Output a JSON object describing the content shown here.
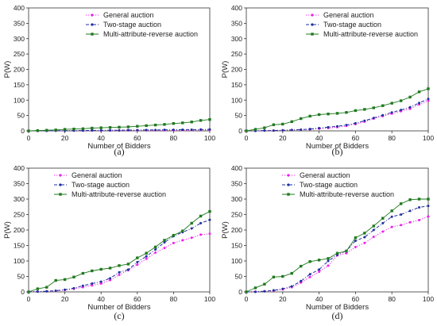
{
  "colors": {
    "general": "#ee22ee",
    "two_stage": "#1f2f9f",
    "multi": "#1f7a1f",
    "axis": "#333333"
  },
  "chart_data": [
    {
      "type": "line",
      "caption": "(a)",
      "xlabel": "Number of Bidders",
      "ylabel": "P(W)",
      "xlim": [
        0,
        100
      ],
      "ylim": [
        0,
        400
      ],
      "xticks": [
        "0",
        "20",
        "40",
        "60",
        "80",
        "100"
      ],
      "yticks": [
        "0",
        "50",
        "100",
        "150",
        "200",
        "250",
        "300",
        "350",
        "400"
      ],
      "grid": false,
      "legend": "top-center",
      "x": [
        0,
        5,
        10,
        15,
        20,
        25,
        30,
        35,
        40,
        45,
        50,
        55,
        60,
        65,
        70,
        75,
        80,
        85,
        90,
        95,
        100
      ],
      "series": [
        {
          "name": "General auction",
          "marker": "dot",
          "line": "dotted",
          "values": [
            0,
            0,
            0,
            0,
            0.5,
            0.5,
            0.5,
            1,
            1,
            1,
            1,
            1.5,
            1.5,
            1.5,
            2,
            2,
            2,
            2.5,
            2.5,
            3,
            3
          ]
        },
        {
          "name": "Two-stage auction",
          "marker": "dot",
          "line": "dashdot",
          "values": [
            0,
            0,
            0,
            0.5,
            0.5,
            1,
            1,
            1.5,
            1.5,
            2,
            2,
            2.5,
            2.5,
            3,
            3,
            3.5,
            3.5,
            4,
            4,
            4.5,
            5
          ]
        },
        {
          "name": "Multi-attribute-reverse auction",
          "marker": "square",
          "line": "solid",
          "values": [
            0,
            1,
            2,
            3,
            5,
            6,
            7,
            9,
            10,
            11,
            12,
            13,
            15,
            17,
            19,
            21,
            24,
            26,
            29,
            34,
            37
          ]
        }
      ]
    },
    {
      "type": "line",
      "caption": "(b)",
      "xlabel": "Number of Bidders",
      "ylabel": "P(W)",
      "xlim": [
        0,
        100
      ],
      "ylim": [
        0,
        400
      ],
      "xticks": [
        "0",
        "20",
        "40",
        "60",
        "80",
        "100"
      ],
      "yticks": [
        "0",
        "50",
        "100",
        "150",
        "200",
        "250",
        "300",
        "350",
        "400"
      ],
      "grid": false,
      "legend": "top-center",
      "x": [
        0,
        5,
        10,
        15,
        20,
        25,
        30,
        35,
        40,
        45,
        50,
        55,
        60,
        65,
        70,
        75,
        80,
        85,
        90,
        95,
        100
      ],
      "series": [
        {
          "name": "General auction",
          "marker": "dot",
          "line": "dotted",
          "values": [
            0,
            0,
            1,
            1,
            2,
            3,
            4,
            5,
            7,
            9,
            12,
            16,
            22,
            30,
            40,
            48,
            56,
            64,
            72,
            86,
            98
          ]
        },
        {
          "name": "Two-stage auction",
          "marker": "dot",
          "line": "dashdot",
          "values": [
            0,
            0,
            1,
            1,
            2,
            3,
            4,
            6,
            9,
            12,
            15,
            19,
            25,
            33,
            42,
            51,
            60,
            68,
            77,
            91,
            104
          ]
        },
        {
          "name": "Multi-attribute-reverse auction",
          "marker": "square",
          "line": "solid",
          "values": [
            0,
            5,
            10,
            20,
            22,
            30,
            40,
            48,
            53,
            55,
            57,
            60,
            66,
            70,
            75,
            82,
            90,
            98,
            110,
            127,
            137
          ]
        }
      ]
    },
    {
      "type": "line",
      "caption": "(c)",
      "xlabel": "Number of Bidders",
      "ylabel": "P(W)",
      "xlim": [
        0,
        100
      ],
      "ylim": [
        0,
        400
      ],
      "xticks": [
        "0",
        "20",
        "40",
        "60",
        "80",
        "100"
      ],
      "yticks": [
        "0",
        "50",
        "100",
        "150",
        "200",
        "250",
        "300",
        "350",
        "400"
      ],
      "grid": false,
      "legend": "top-left",
      "x": [
        0,
        5,
        10,
        15,
        20,
        25,
        30,
        35,
        40,
        45,
        50,
        55,
        60,
        65,
        70,
        75,
        80,
        85,
        90,
        95,
        100
      ],
      "series": [
        {
          "name": "General auction",
          "marker": "dot",
          "line": "dotted",
          "values": [
            0,
            1,
            2,
            3,
            6,
            10,
            15,
            21,
            27,
            38,
            55,
            70,
            88,
            107,
            127,
            142,
            158,
            167,
            175,
            185,
            188
          ]
        },
        {
          "name": "Two-stage auction",
          "marker": "dot",
          "line": "dashdot",
          "values": [
            0,
            1,
            2,
            4,
            7,
            12,
            20,
            27,
            33,
            44,
            63,
            72,
            96,
            115,
            137,
            160,
            180,
            193,
            205,
            222,
            233
          ]
        },
        {
          "name": "Multi-attribute-reverse auction",
          "marker": "square",
          "line": "solid",
          "values": [
            0,
            10,
            15,
            37,
            40,
            48,
            60,
            68,
            73,
            77,
            85,
            90,
            110,
            125,
            145,
            167,
            183,
            197,
            222,
            245,
            260
          ]
        }
      ]
    },
    {
      "type": "line",
      "caption": "(d)",
      "xlabel": "Number of Bidders",
      "ylabel": "P(W)",
      "xlim": [
        0,
        100
      ],
      "ylim": [
        0,
        400
      ],
      "xticks": [
        "0",
        "20",
        "40",
        "60",
        "80",
        "100"
      ],
      "yticks": [
        "0",
        "50",
        "100",
        "150",
        "200",
        "250",
        "300",
        "350",
        "400"
      ],
      "grid": false,
      "legend": "top-left",
      "x": [
        0,
        5,
        10,
        15,
        20,
        25,
        30,
        35,
        40,
        45,
        50,
        55,
        60,
        65,
        70,
        75,
        80,
        85,
        90,
        95,
        100
      ],
      "series": [
        {
          "name": "General auction",
          "marker": "dot",
          "line": "dotted",
          "values": [
            0,
            1,
            2,
            4,
            8,
            15,
            30,
            48,
            65,
            85,
            118,
            125,
            145,
            158,
            178,
            195,
            210,
            216,
            225,
            232,
            244
          ]
        },
        {
          "name": "Two-stage auction",
          "marker": "dot",
          "line": "dashdot",
          "values": [
            0,
            0,
            2,
            5,
            10,
            18,
            35,
            57,
            72,
            100,
            120,
            133,
            165,
            177,
            200,
            222,
            243,
            250,
            262,
            273,
            278
          ]
        },
        {
          "name": "Multi-attribute-reverse auction",
          "marker": "square",
          "line": "solid",
          "values": [
            0,
            13,
            25,
            48,
            50,
            60,
            83,
            98,
            103,
            108,
            125,
            132,
            175,
            190,
            213,
            238,
            262,
            285,
            298,
            300,
            300
          ]
        }
      ]
    }
  ]
}
